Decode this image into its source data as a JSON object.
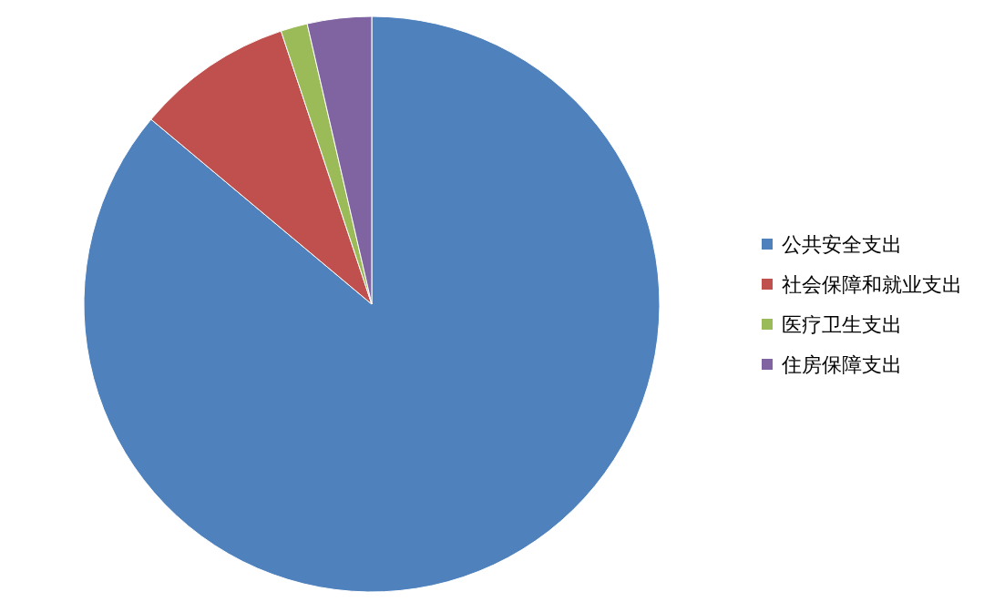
{
  "chart_data": {
    "type": "pie",
    "categories": [
      "公共安全支出",
      "社会保障和就业支出",
      "医疗卫生支出",
      "住房保障支出"
    ],
    "values": [
      86.1,
      8.8,
      1.5,
      3.6
    ],
    "colors": [
      "#4f81bd",
      "#c0504d",
      "#9bbb59",
      "#8064a2"
    ],
    "legend": "right"
  }
}
